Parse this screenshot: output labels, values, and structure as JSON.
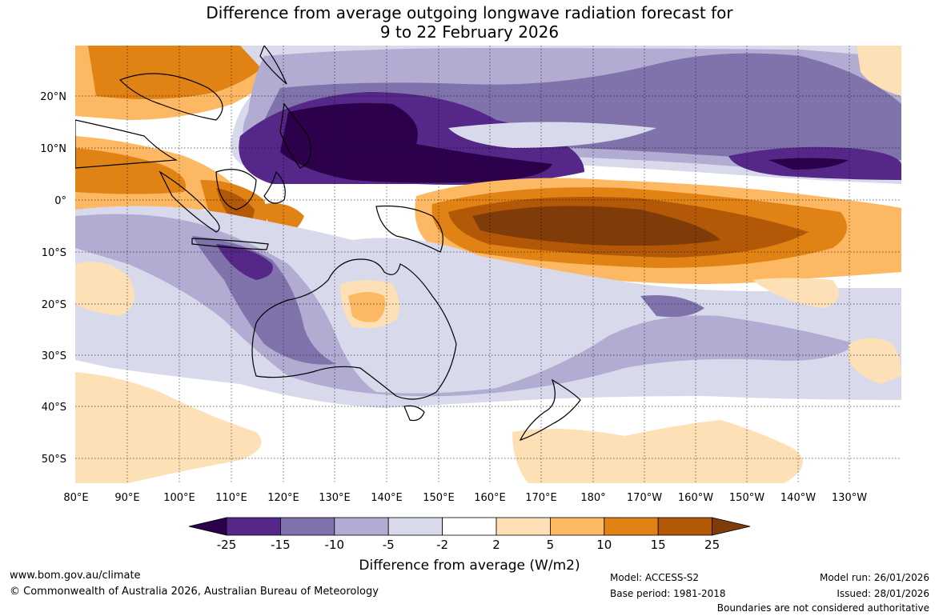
{
  "title_line1": "Difference from average outgoing longwave radiation forecast for",
  "title_line2": "9 to 22 February 2026",
  "lat_labels": [
    "20°N",
    "10°N",
    "0°",
    "10°S",
    "20°S",
    "30°S",
    "40°S",
    "50°S"
  ],
  "lon_labels": [
    "80°E",
    "90°E",
    "100°E",
    "110°E",
    "120°E",
    "130°E",
    "140°E",
    "150°E",
    "160°E",
    "170°E",
    "180°",
    "170°W",
    "160°W",
    "150°W",
    "140°W",
    "130°W"
  ],
  "legend": {
    "colors": [
      "#2d004b",
      "#542788",
      "#8073ac",
      "#b2abd2",
      "#d8daeb",
      "#ffffff",
      "#fee0b6",
      "#fdb863",
      "#e08214",
      "#b35806",
      "#7f3b08"
    ],
    "tick_labels": [
      "-25",
      "-15",
      "-10",
      "-5",
      "-2",
      "2",
      "5",
      "10",
      "15",
      "25"
    ],
    "label": "Difference from average (W/m2)"
  },
  "footer": {
    "website": "www.bom.gov.au/climate",
    "copyright": "© Commonwealth of Australia 2026, Australian Bureau of Meteorology",
    "model": "Model: ACCESS-S2",
    "base_period": "Base period: 1981-2018",
    "model_run": "Model run: 26/01/2026",
    "issued": "Issued: 28/01/2026",
    "disclaimer": "Boundaries are not considered authoritative"
  }
}
